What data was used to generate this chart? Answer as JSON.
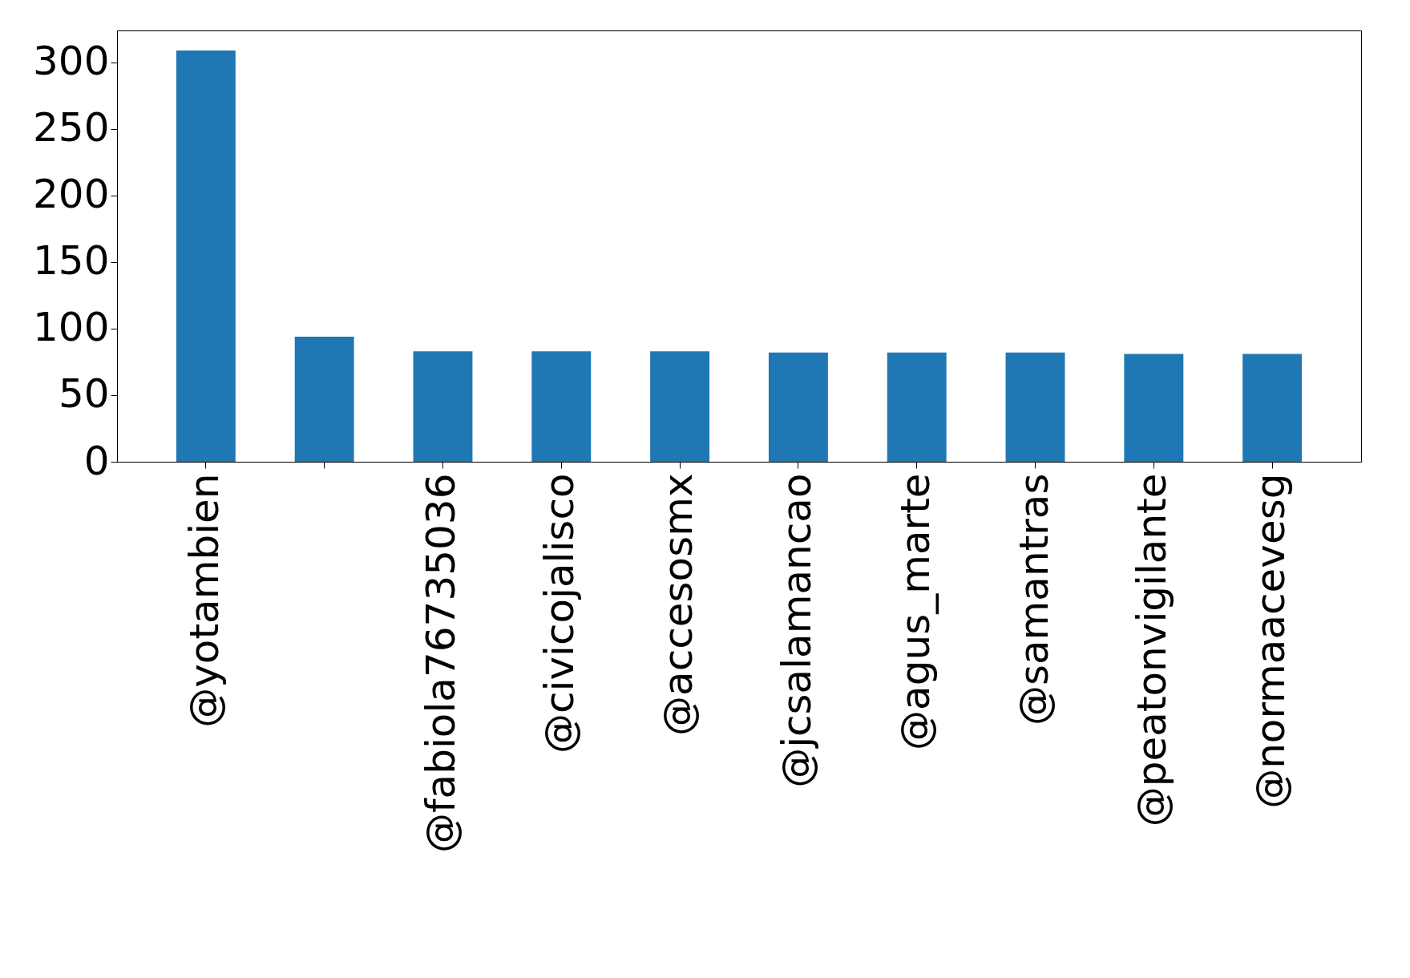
{
  "chart_data": {
    "type": "bar",
    "categories": [
      "@yotambien",
      null,
      "@fabiola76735036",
      "@civicojalisco",
      "@accesosmx",
      "@jcsalamancao",
      "@agus_marte",
      "@samantras",
      "@peatonvigilante",
      "@normaacevesg"
    ],
    "values": [
      309,
      94,
      83,
      83,
      83,
      82,
      82,
      82,
      81,
      81
    ],
    "color": "#1f77b4",
    "ylim": [
      0,
      324
    ],
    "yticks": [
      0,
      50,
      100,
      150,
      200,
      250,
      300
    ],
    "grid": false
  }
}
